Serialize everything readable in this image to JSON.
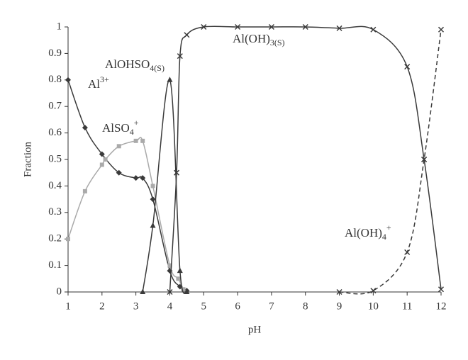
{
  "chart_data": {
    "type": "line",
    "xlabel": "pH",
    "ylabel": "Fraction",
    "xlim": [
      1,
      12
    ],
    "xticks": [
      1,
      2,
      3,
      4,
      5,
      6,
      7,
      8,
      9,
      10,
      11,
      12
    ],
    "ylim": [
      0,
      1
    ],
    "yticks": [
      0,
      0.1,
      0.2,
      0.3,
      0.4,
      0.5,
      0.6,
      0.7,
      0.8,
      0.9,
      1
    ],
    "series": [
      {
        "name": "Al",
        "name_sup": "3+",
        "color": "#3a3a3a",
        "marker": "diamond",
        "dash": false,
        "x": [
          1,
          1.5,
          2,
          2.5,
          3,
          3.2,
          3.5,
          4,
          4.3,
          4.5
        ],
        "values": [
          0.8,
          0.62,
          0.52,
          0.45,
          0.43,
          0.43,
          0.35,
          0.08,
          0.02,
          0.005
        ]
      },
      {
        "name": "AlSO",
        "name_sub": "4",
        "name_sup": "+",
        "color": "#aaaaaa",
        "marker": "square",
        "dash": false,
        "x": [
          1,
          1.5,
          2,
          2.1,
          2.5,
          3,
          3.2,
          3.5,
          4,
          4.25,
          4.4
        ],
        "values": [
          0.2,
          0.38,
          0.48,
          0.5,
          0.55,
          0.57,
          0.57,
          0.4,
          0.1,
          0.05,
          0.01
        ]
      },
      {
        "name": "AlOHSO",
        "name_sub": "4(S)",
        "color": "#3a3a3a",
        "marker": "triangle",
        "dash": false,
        "x": [
          3.2,
          3.5,
          4,
          4.3,
          4.5
        ],
        "values": [
          0,
          0.25,
          0.8,
          0.08,
          0
        ]
      },
      {
        "name": "Al(OH)",
        "name_sub": "3(S)",
        "color": "#3a3a3a",
        "marker": "cross",
        "dash": false,
        "x": [
          4,
          4.2,
          4.3,
          4.5,
          5,
          6,
          7,
          8,
          9,
          10,
          11,
          11.5,
          12
        ],
        "values": [
          0,
          0.45,
          0.89,
          0.97,
          1,
          1,
          1,
          1,
          0.995,
          0.99,
          0.85,
          0.5,
          0.01
        ]
      },
      {
        "name": "Al(OH)",
        "name_sub": "4",
        "name_sup": "+",
        "color": "#3a3a3a",
        "marker": "cross",
        "dash": true,
        "x": [
          9,
          10,
          11,
          11.5,
          12
        ],
        "values": [
          0,
          0.005,
          0.15,
          0.5,
          0.99
        ]
      }
    ]
  }
}
